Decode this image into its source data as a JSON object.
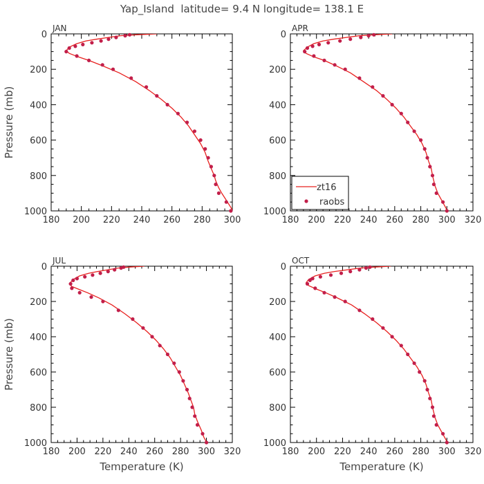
{
  "figure": {
    "title": "Yap_Island  latitude= 9.4 N longitude= 138.1 E"
  },
  "colors": {
    "model_line": "#e8201e",
    "obs_points": "#c21f4a",
    "axis": "#000000",
    "text": "#333333"
  },
  "legend": {
    "panel_index": 1,
    "placement": "lower-left",
    "entries": [
      {
        "label": "zt16",
        "kind": "line"
      },
      {
        "label": "raobs",
        "kind": "marker"
      }
    ]
  },
  "chart_data": [
    {
      "type": "line",
      "panel": "JAN",
      "xlabel": "",
      "ylabel": "Pressure (mb)",
      "xlim": [
        180,
        300
      ],
      "ylim": [
        1000,
        0
      ],
      "y_inverted": true,
      "xticks": [
        180,
        200,
        220,
        240,
        260,
        280,
        300
      ],
      "yticks": [
        0,
        200,
        400,
        600,
        800,
        1000
      ],
      "series": [
        {
          "name": "zt16",
          "kind": "line",
          "x": [
            250,
            236,
            226,
            218,
            210,
            203,
            197,
            192,
            190,
            192,
            198,
            205,
            214,
            225,
            236,
            245,
            253,
            260,
            266,
            271,
            275,
            279,
            282,
            284,
            286,
            288,
            289,
            290,
            291,
            293,
            296,
            299,
            301
          ],
          "y": [
            0,
            5,
            10,
            20,
            30,
            40,
            55,
            75,
            95,
            110,
            130,
            150,
            180,
            220,
            270,
            320,
            370,
            420,
            470,
            520,
            570,
            620,
            670,
            720,
            760,
            800,
            830,
            850,
            870,
            900,
            940,
            980,
            1010
          ]
        },
        {
          "name": "raobs",
          "kind": "marker",
          "x": [
            232,
            229,
            223,
            218,
            213,
            207,
            201,
            196,
            192,
            190,
            197,
            205,
            214,
            221,
            233,
            243,
            250,
            257,
            264,
            270,
            275,
            279,
            282,
            284,
            286,
            288,
            289,
            291,
            296,
            299
          ],
          "y": [
            5,
            10,
            20,
            30,
            40,
            50,
            60,
            70,
            80,
            100,
            125,
            150,
            175,
            200,
            250,
            300,
            350,
            400,
            450,
            500,
            550,
            600,
            650,
            700,
            750,
            800,
            850,
            900,
            950,
            1000
          ]
        }
      ]
    },
    {
      "type": "line",
      "panel": "APR",
      "xlabel": "",
      "ylabel": "",
      "xlim": [
        180,
        320
      ],
      "ylim": [
        1000,
        0
      ],
      "y_inverted": true,
      "xticks": [
        180,
        200,
        220,
        240,
        260,
        280,
        300,
        320
      ],
      "yticks": [
        0,
        200,
        400,
        600,
        800,
        1000
      ],
      "series": [
        {
          "name": "zt16",
          "kind": "line",
          "x": [
            258,
            244,
            233,
            223,
            213,
            205,
            198,
            193,
            190,
            192,
            198,
            206,
            215,
            226,
            236,
            246,
            254,
            261,
            267,
            272,
            277,
            281,
            284,
            286,
            288,
            289,
            290,
            291,
            293,
            296,
            299,
            301
          ],
          "y": [
            0,
            5,
            10,
            20,
            30,
            40,
            55,
            75,
            95,
            110,
            130,
            150,
            180,
            220,
            270,
            320,
            370,
            420,
            470,
            520,
            570,
            620,
            670,
            720,
            760,
            800,
            830,
            860,
            900,
            940,
            980,
            1010
          ]
        },
        {
          "name": "raobs",
          "kind": "marker",
          "x": [
            244,
            240,
            234,
            226,
            218,
            209,
            202,
            197,
            193,
            191,
            198,
            206,
            214,
            222,
            233,
            243,
            251,
            258,
            265,
            270,
            275,
            280,
            283,
            285,
            287,
            289,
            290,
            292,
            297,
            300
          ],
          "y": [
            5,
            10,
            20,
            30,
            40,
            50,
            60,
            70,
            80,
            100,
            125,
            150,
            175,
            200,
            250,
            300,
            350,
            400,
            450,
            500,
            550,
            600,
            650,
            700,
            750,
            800,
            850,
            900,
            950,
            1000
          ]
        }
      ]
    },
    {
      "type": "line",
      "panel": "JUL",
      "xlabel": "Temperature (K)",
      "ylabel": "Pressure (mb)",
      "xlim": [
        180,
        320
      ],
      "ylim": [
        1000,
        0
      ],
      "y_inverted": true,
      "xticks": [
        180,
        200,
        220,
        240,
        260,
        280,
        300,
        320
      ],
      "yticks": [
        0,
        200,
        400,
        600,
        800,
        1000
      ],
      "series": [
        {
          "name": "zt16",
          "kind": "line",
          "x": [
            252,
            240,
            232,
            224,
            216,
            209,
            202,
            197,
            194,
            196,
            201,
            208,
            217,
            227,
            237,
            246,
            254,
            261,
            267,
            272,
            276,
            280,
            283,
            286,
            288,
            290,
            291,
            293,
            296,
            298,
            301
          ],
          "y": [
            0,
            5,
            10,
            20,
            30,
            40,
            55,
            75,
            100,
            115,
            130,
            150,
            180,
            220,
            270,
            320,
            370,
            420,
            470,
            520,
            570,
            620,
            670,
            720,
            760,
            800,
            840,
            880,
            930,
            970,
            1010
          ]
        },
        {
          "name": "raobs",
          "kind": "marker",
          "x": [
            236,
            234,
            229,
            224,
            218,
            212,
            206,
            200,
            197,
            195,
            196,
            202,
            211,
            220,
            232,
            243,
            251,
            258,
            264,
            270,
            275,
            279,
            282,
            285,
            287,
            289,
            291,
            293,
            297,
            300
          ],
          "y": [
            5,
            10,
            20,
            30,
            40,
            50,
            60,
            70,
            80,
            100,
            125,
            150,
            175,
            200,
            250,
            300,
            350,
            400,
            450,
            500,
            550,
            600,
            650,
            700,
            750,
            800,
            850,
            900,
            950,
            1000
          ]
        }
      ]
    },
    {
      "type": "line",
      "panel": "OCT",
      "xlabel": "Temperature (K)",
      "ylabel": "",
      "xlim": [
        180,
        320
      ],
      "ylim": [
        1000,
        0
      ],
      "y_inverted": true,
      "xticks": [
        180,
        200,
        220,
        240,
        260,
        280,
        300,
        320
      ],
      "yticks": [
        0,
        200,
        400,
        600,
        800,
        1000
      ],
      "series": [
        {
          "name": "zt16",
          "kind": "line",
          "x": [
            257,
            244,
            234,
            224,
            214,
            206,
            199,
            194,
            192,
            194,
            200,
            207,
            216,
            227,
            237,
            246,
            254,
            261,
            267,
            272,
            277,
            281,
            284,
            286,
            288,
            289,
            290,
            291,
            293,
            296,
            299,
            301
          ],
          "y": [
            0,
            5,
            10,
            20,
            30,
            40,
            55,
            75,
            95,
            110,
            130,
            150,
            180,
            220,
            270,
            320,
            370,
            420,
            470,
            520,
            570,
            620,
            670,
            720,
            760,
            800,
            830,
            860,
            900,
            940,
            980,
            1010
          ]
        },
        {
          "name": "raobs",
          "kind": "marker",
          "x": [
            241,
            238,
            233,
            226,
            219,
            211,
            203,
            197,
            195,
            193,
            199,
            206,
            214,
            222,
            233,
            243,
            251,
            258,
            265,
            270,
            275,
            279,
            283,
            285,
            287,
            289,
            290,
            292,
            297,
            300
          ],
          "y": [
            5,
            10,
            20,
            30,
            40,
            50,
            60,
            70,
            80,
            100,
            125,
            150,
            175,
            200,
            250,
            300,
            350,
            400,
            450,
            500,
            550,
            600,
            650,
            700,
            750,
            800,
            850,
            900,
            950,
            1000
          ]
        }
      ]
    }
  ]
}
